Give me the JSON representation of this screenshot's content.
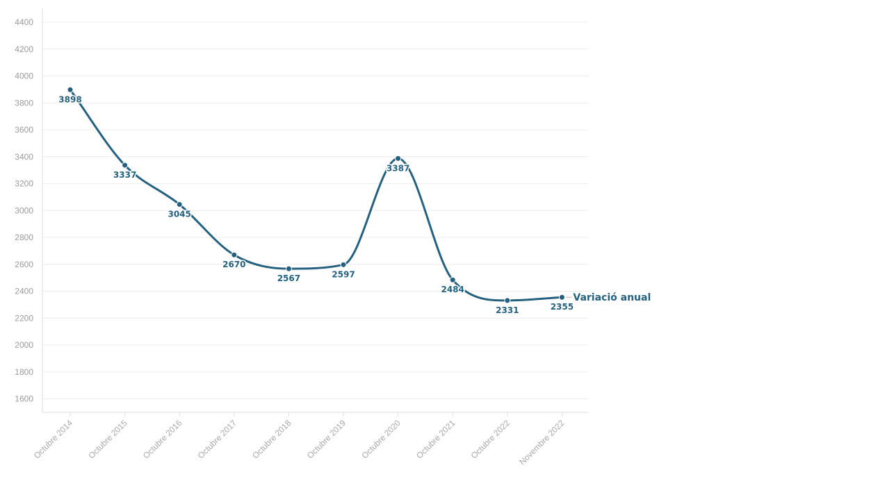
{
  "chart_data": {
    "type": "line",
    "title": "",
    "xlabel": "",
    "ylabel": "",
    "ylim": [
      1600,
      4400
    ],
    "yticks": [
      1600,
      1800,
      2000,
      2200,
      2400,
      2600,
      2800,
      3000,
      3200,
      3400,
      3600,
      3800,
      4000,
      4200,
      4400
    ],
    "grid": true,
    "legend": "none",
    "categories": [
      "Octubre 2014",
      "Octubre 2015",
      "Octubre 2016",
      "Octubre 2017",
      "Octubre 2018",
      "Octubre 2019",
      "Octubre 2020",
      "Octubre 2021",
      "Octubre 2022",
      "Novembre 2022"
    ],
    "series": [
      {
        "name": "Variació anual",
        "color": "#24607f",
        "values": [
          3898,
          3337,
          3045,
          2670,
          2567,
          2597,
          3387,
          2484,
          2331,
          2355
        ]
      }
    ]
  }
}
